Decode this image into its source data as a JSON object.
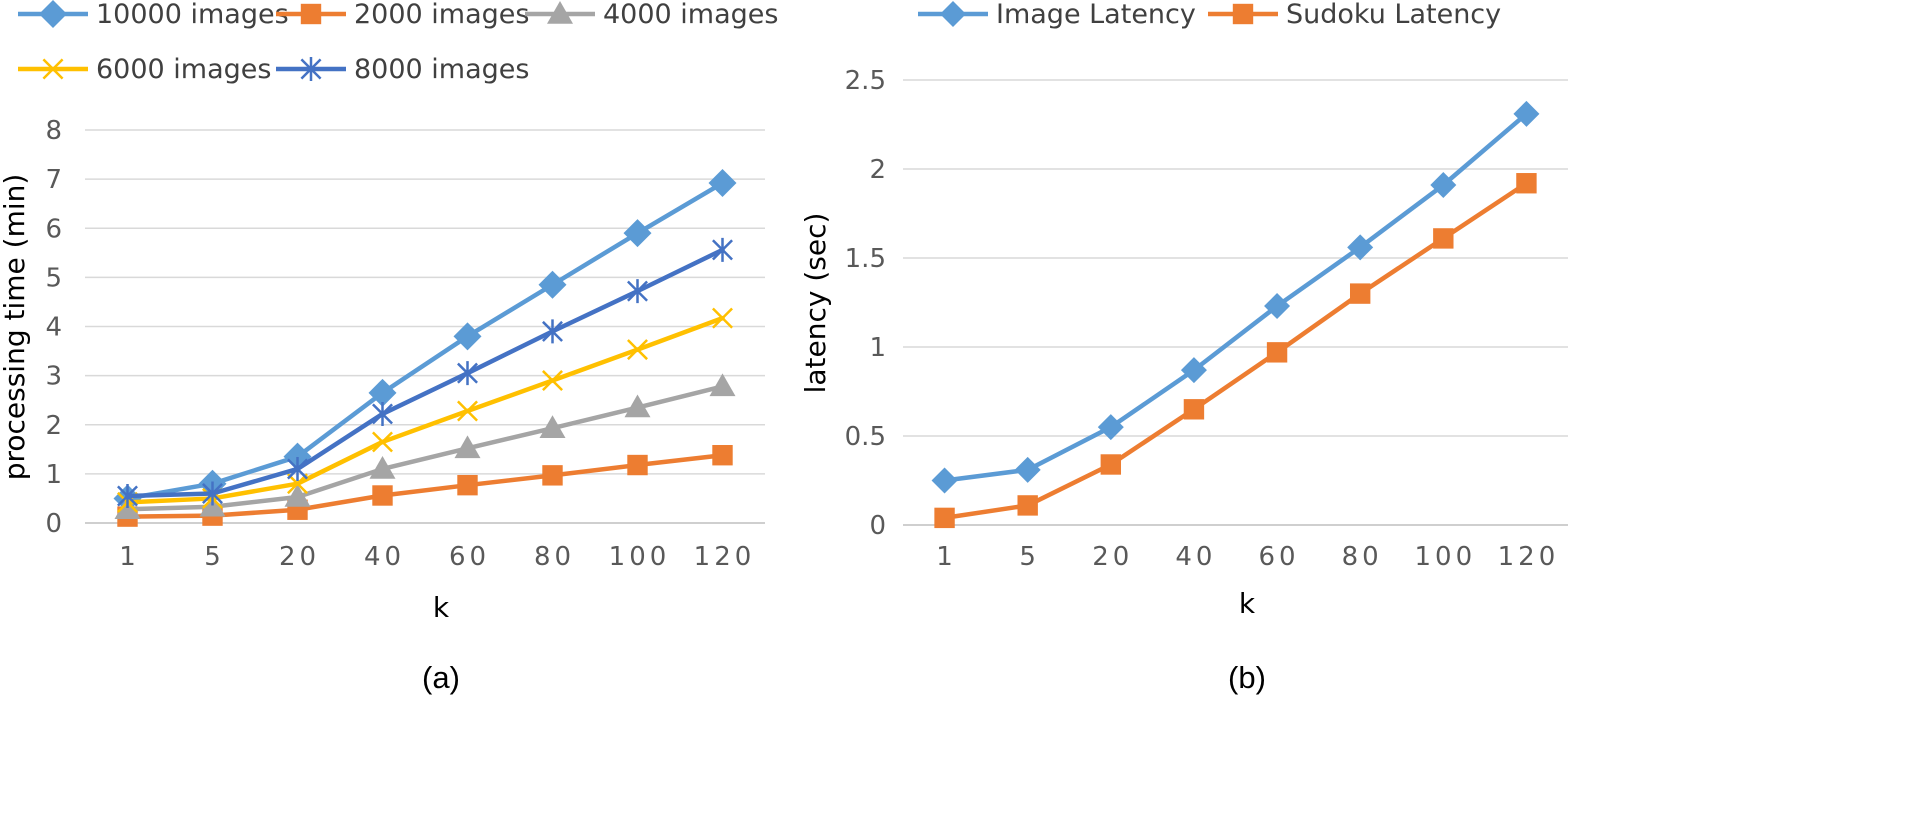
{
  "chart_data": [
    {
      "type": "line",
      "caption": "(a)",
      "xlabel": "k",
      "ylabel": "processing time (min)",
      "categories": [
        "1",
        "5",
        "20",
        "40",
        "60",
        "80",
        "100",
        "120"
      ],
      "ylim": [
        0,
        8
      ],
      "yticks": [
        "0",
        "1",
        "2",
        "3",
        "4",
        "5",
        "6",
        "7",
        "8"
      ],
      "grid": true,
      "legend_position": "top",
      "series": [
        {
          "name": "10000 images",
          "color": "#5B9BD5",
          "marker": "diamond",
          "values": [
            0.5,
            0.8,
            1.35,
            2.65,
            3.8,
            4.85,
            5.9,
            6.92
          ]
        },
        {
          "name": "2000 images",
          "color": "#ED7D31",
          "marker": "square",
          "values": [
            0.13,
            0.15,
            0.27,
            0.56,
            0.77,
            0.97,
            1.18,
            1.38
          ]
        },
        {
          "name": "4000 images",
          "color": "#A5A5A5",
          "marker": "triangle",
          "values": [
            0.28,
            0.33,
            0.53,
            1.1,
            1.52,
            1.93,
            2.35,
            2.78
          ]
        },
        {
          "name": "6000 images",
          "color": "#FFC000",
          "marker": "x",
          "values": [
            0.42,
            0.5,
            0.8,
            1.65,
            2.28,
            2.9,
            3.53,
            4.17
          ]
        },
        {
          "name": "8000 images",
          "color": "#4472C4",
          "marker": "asterisk",
          "values": [
            0.55,
            0.6,
            1.1,
            2.22,
            3.05,
            3.9,
            4.72,
            5.56
          ]
        }
      ]
    },
    {
      "type": "line",
      "caption": "(b)",
      "xlabel": "k",
      "ylabel": "latency (sec)",
      "categories": [
        "1",
        "5",
        "20",
        "40",
        "60",
        "80",
        "100",
        "120"
      ],
      "ylim": [
        0,
        2.5
      ],
      "yticks": [
        "0",
        "0.5",
        "1",
        "1.5",
        "2",
        "2.5"
      ],
      "grid": true,
      "legend_position": "top",
      "series": [
        {
          "name": "Image Latency",
          "color": "#5B9BD5",
          "marker": "diamond",
          "values": [
            0.25,
            0.31,
            0.55,
            0.87,
            1.23,
            1.56,
            1.91,
            2.31
          ]
        },
        {
          "name": "Sudoku Latency",
          "color": "#ED7D31",
          "marker": "square",
          "values": [
            0.04,
            0.11,
            0.34,
            0.65,
            0.97,
            1.3,
            1.61,
            1.92
          ]
        }
      ]
    }
  ]
}
